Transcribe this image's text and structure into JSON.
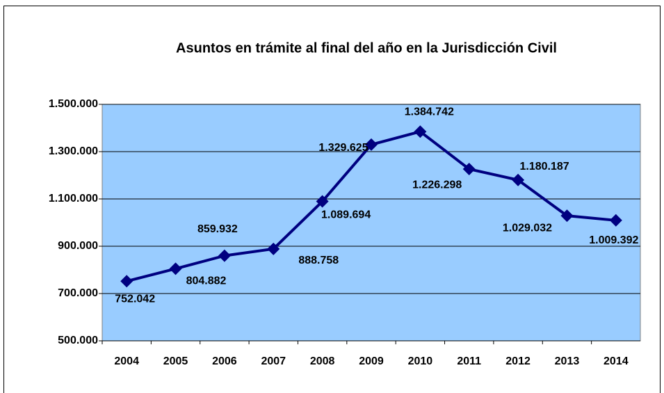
{
  "chart_data": {
    "type": "line",
    "title": "Asuntos en trámite al final del año en la Jurisdicción Civil",
    "categories": [
      "2004",
      "2005",
      "2006",
      "2007",
      "2008",
      "2009",
      "2010",
      "2011",
      "2012",
      "2013",
      "2014"
    ],
    "series": [
      {
        "color": "#000080",
        "values": [
          752042,
          804882,
          859932,
          888758,
          1089694,
          1329625,
          1384742,
          1226298,
          1180187,
          1029032,
          1009392
        ],
        "value_labels": [
          "752.042",
          "804.882",
          "859.932",
          "888.758",
          "1.089.694",
          "1.329.625",
          "1.384.742",
          "1.226.298",
          "1.180.187",
          "1.029.032",
          "1.009.392"
        ]
      }
    ],
    "ylim": [
      500000,
      1500000
    ],
    "yticks": [
      {
        "value": 500000,
        "label": "500.000"
      },
      {
        "value": 700000,
        "label": "700.000"
      },
      {
        "value": 900000,
        "label": "900.000"
      },
      {
        "value": 1100000,
        "label": "1.100.000"
      },
      {
        "value": 1300000,
        "label": "1.300.000"
      },
      {
        "value": 1500000,
        "label": "1.500.000"
      }
    ],
    "grid": true,
    "background": "#99ccff"
  }
}
